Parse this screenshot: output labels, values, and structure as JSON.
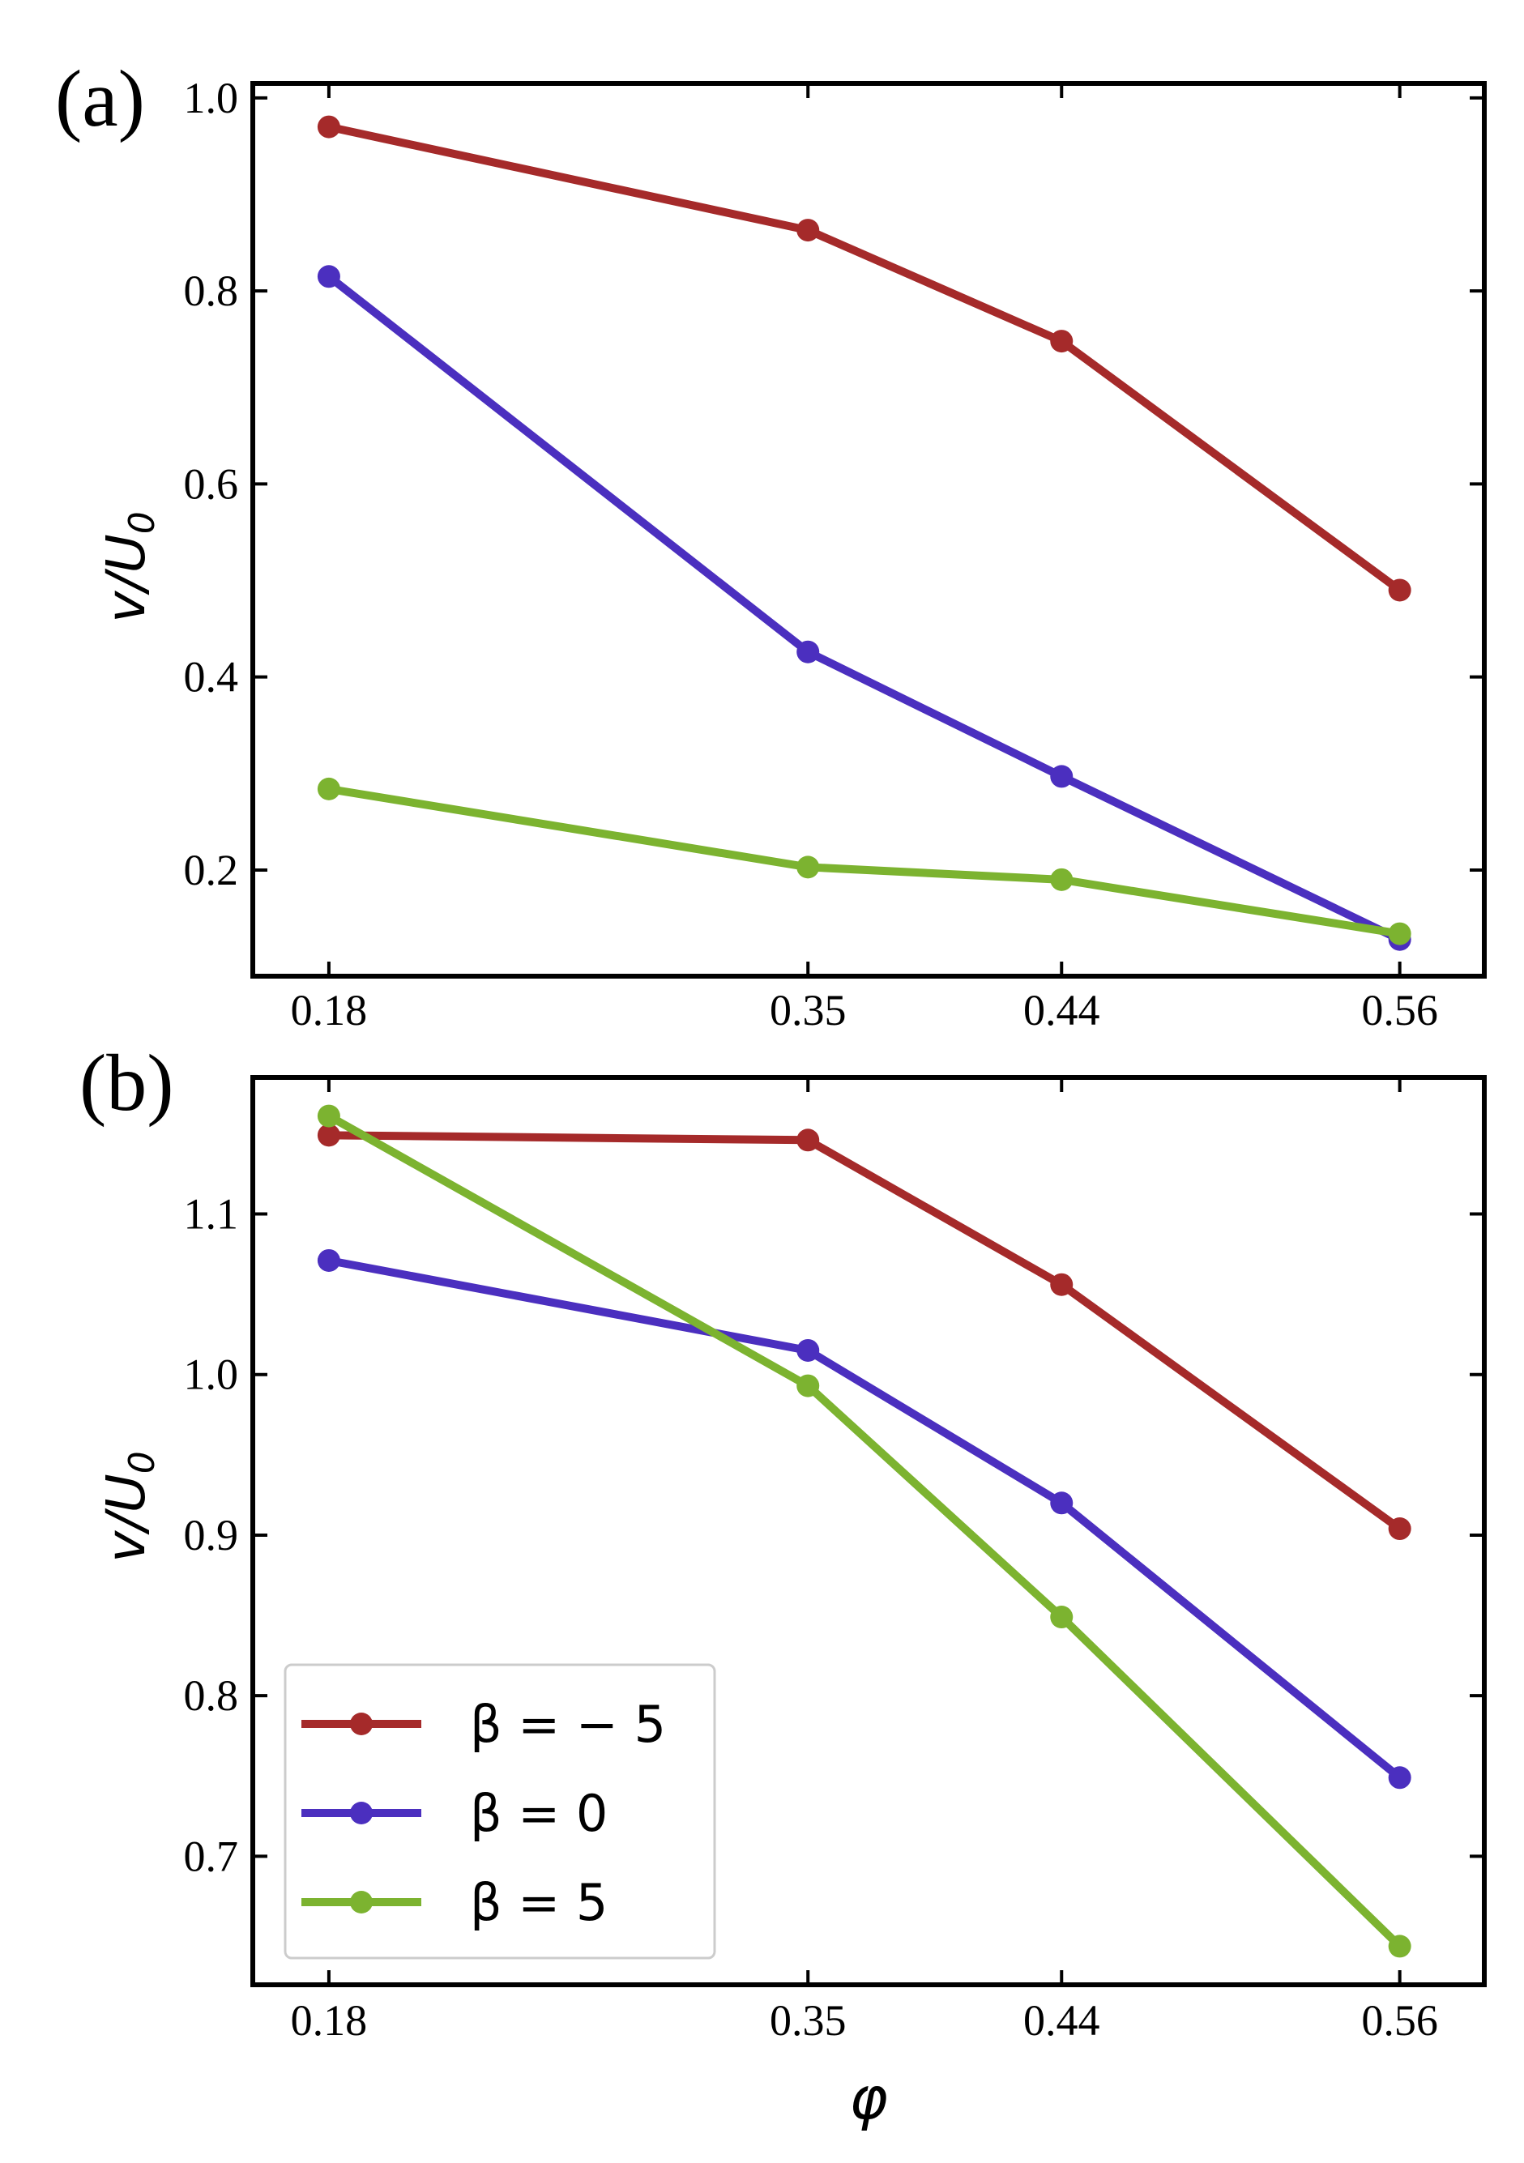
{
  "chart_data": [
    {
      "panel": "(a)",
      "type": "line",
      "x": [
        0.18,
        0.35,
        0.44,
        0.56
      ],
      "xticks": [
        "0.18",
        "0.35",
        "0.44",
        "0.56"
      ],
      "xlabel": "",
      "ylabel": "v/U",
      "ylabel_sub": "0",
      "ylim": [
        0.09,
        1.015
      ],
      "yticks": [
        "0.2",
        "0.4",
        "0.6",
        "0.8",
        "1.0"
      ],
      "series": [
        {
          "name": "β = − 5",
          "color": "#a52a2a",
          "values": [
            0.97,
            0.863,
            0.748,
            0.49
          ]
        },
        {
          "name": "β = 0",
          "color": "#4b2fbf",
          "values": [
            0.815,
            0.426,
            0.297,
            0.128
          ]
        },
        {
          "name": "β = 5",
          "color": "#7cb330",
          "values": [
            0.284,
            0.203,
            0.19,
            0.134
          ]
        }
      ]
    },
    {
      "panel": "(b)",
      "type": "line",
      "x": [
        0.18,
        0.35,
        0.44,
        0.56
      ],
      "xticks": [
        "0.18",
        "0.35",
        "0.44",
        "0.56"
      ],
      "xlabel": "φ",
      "ylabel": "v/U",
      "ylabel_sub": "0",
      "ylim": [
        0.62,
        1.185
      ],
      "yticks": [
        "0.7",
        "0.8",
        "0.9",
        "1.0",
        "1.1"
      ],
      "legend_position": "lower-left",
      "series": [
        {
          "name": "β = − 5",
          "color": "#a52a2a",
          "values": [
            1.149,
            1.146,
            1.056,
            0.904
          ]
        },
        {
          "name": "β = 0",
          "color": "#4b2fbf",
          "values": [
            1.071,
            1.015,
            0.92,
            0.749
          ]
        },
        {
          "name": "β = 5",
          "color": "#7cb330",
          "values": [
            1.161,
            0.993,
            0.849,
            0.644
          ]
        }
      ]
    }
  ]
}
